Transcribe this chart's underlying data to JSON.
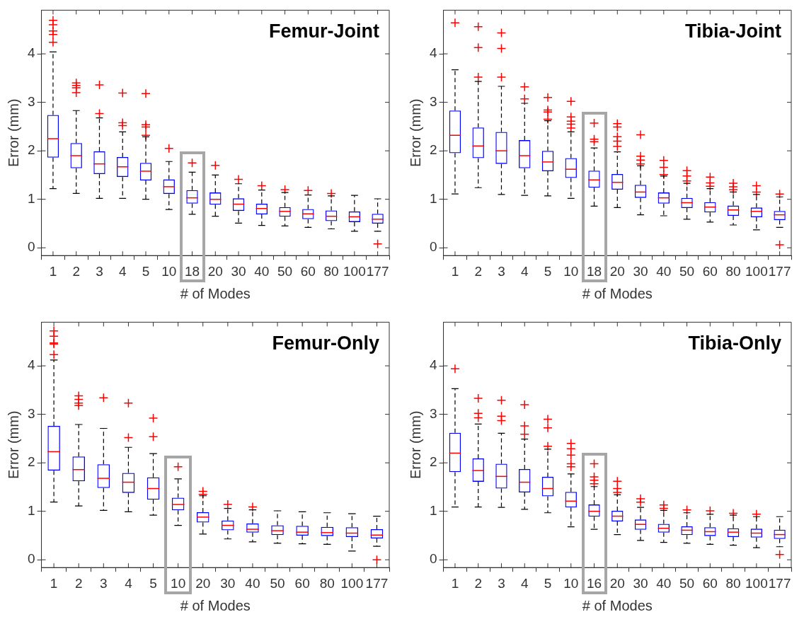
{
  "chart_data": [
    {
      "type": "box",
      "title": "Femur-Joint",
      "xlabel": "# of Modes",
      "ylabel": "Error (mm)",
      "categories": [
        "1",
        "2",
        "3",
        "4",
        "5",
        "10",
        "18",
        "20",
        "30",
        "40",
        "50",
        "60",
        "80",
        "100",
        "177"
      ],
      "ylim": [
        -0.16,
        4.9
      ],
      "yticks": [
        0,
        1,
        2,
        3,
        4
      ],
      "series": [
        {
          "color": "#0000ff",
          "boxes": [
            {
              "low": 1.22,
              "q1": 1.86,
              "median": 2.25,
              "q3": 2.74,
              "high": 4.04,
              "outliers": [
                4.24,
                4.4,
                4.47,
                4.6,
                4.69
              ]
            },
            {
              "low": 1.12,
              "q1": 1.64,
              "median": 1.9,
              "q3": 2.16,
              "high": 2.83,
              "outliers": [
                3.2,
                3.3,
                3.35,
                3.4
              ]
            },
            {
              "low": 1.02,
              "q1": 1.52,
              "median": 1.73,
              "q3": 1.99,
              "high": 2.68,
              "outliers": [
                2.77,
                3.36
              ]
            },
            {
              "low": 1.02,
              "q1": 1.46,
              "median": 1.67,
              "q3": 1.87,
              "high": 2.39,
              "outliers": [
                2.52,
                2.58,
                3.19
              ]
            },
            {
              "low": 1.0,
              "q1": 1.39,
              "median": 1.58,
              "q3": 1.75,
              "high": 2.29,
              "outliers": [
                2.32,
                2.49,
                2.54,
                3.18
              ]
            },
            {
              "low": 0.79,
              "q1": 1.11,
              "median": 1.26,
              "q3": 1.41,
              "high": 1.78,
              "outliers": [
                2.05
              ]
            },
            {
              "low": 0.69,
              "q1": 0.91,
              "median": 1.03,
              "q3": 1.19,
              "high": 1.56,
              "outliers": [
                1.75
              ]
            },
            {
              "low": 0.65,
              "q1": 0.89,
              "median": 1.0,
              "q3": 1.14,
              "high": 1.5,
              "outliers": [
                1.7
              ]
            },
            {
              "low": 0.51,
              "q1": 0.76,
              "median": 0.9,
              "q3": 1.02,
              "high": 1.32,
              "outliers": [
                1.41
              ]
            },
            {
              "low": 0.46,
              "q1": 0.69,
              "median": 0.81,
              "q3": 0.91,
              "high": 1.19,
              "outliers": [
                1.28
              ]
            },
            {
              "low": 0.45,
              "q1": 0.64,
              "median": 0.75,
              "q3": 0.84,
              "high": 1.14,
              "outliers": [
                1.2
              ]
            },
            {
              "low": 0.42,
              "q1": 0.59,
              "median": 0.7,
              "q3": 0.8,
              "high": 1.09,
              "outliers": [
                1.18
              ]
            },
            {
              "low": 0.39,
              "q1": 0.55,
              "median": 0.65,
              "q3": 0.77,
              "high": 1.07,
              "outliers": [
                1.12
              ]
            },
            {
              "low": 0.34,
              "q1": 0.53,
              "median": 0.64,
              "q3": 0.75,
              "high": 1.08
            },
            {
              "low": 0.34,
              "q1": 0.5,
              "median": 0.59,
              "q3": 0.7,
              "high": 1.01,
              "outliers": [
                0.08
              ]
            }
          ]
        }
      ]
    },
    {
      "type": "box",
      "title": "Tibia-Joint",
      "xlabel": "# of Modes",
      "ylabel": "Error (mm)",
      "categories": [
        "1",
        "2",
        "3",
        "4",
        "5",
        "10",
        "18",
        "20",
        "30",
        "40",
        "50",
        "60",
        "80",
        "100",
        "177"
      ],
      "ylim": [
        -0.16,
        4.9
      ],
      "yticks": [
        0,
        1,
        2,
        3,
        4
      ],
      "series": [
        {
          "color": "#0000ff",
          "boxes": [
            {
              "low": 1.11,
              "q1": 1.95,
              "median": 2.32,
              "q3": 2.83,
              "high": 3.67,
              "outliers": [
                4.64
              ]
            },
            {
              "low": 1.24,
              "q1": 1.85,
              "median": 2.1,
              "q3": 2.48,
              "high": 3.43,
              "outliers": [
                3.52,
                4.13,
                4.56
              ]
            },
            {
              "low": 1.1,
              "q1": 1.73,
              "median": 2.0,
              "q3": 2.39,
              "high": 3.33,
              "outliers": [
                3.52,
                4.11,
                4.43
              ]
            },
            {
              "low": 1.08,
              "q1": 1.64,
              "median": 1.9,
              "q3": 2.22,
              "high": 2.98,
              "outliers": [
                3.07,
                3.32
              ]
            },
            {
              "low": 1.07,
              "q1": 1.58,
              "median": 1.77,
              "q3": 2.0,
              "high": 2.62,
              "outliers": [
                2.65,
                2.8,
                2.84,
                3.1
              ]
            },
            {
              "low": 1.02,
              "q1": 1.44,
              "median": 1.62,
              "q3": 1.85,
              "high": 2.39,
              "outliers": [
                2.47,
                2.55,
                2.61,
                2.7,
                3.02
              ]
            },
            {
              "low": 0.86,
              "q1": 1.24,
              "median": 1.4,
              "q3": 1.59,
              "high": 2.06,
              "outliers": [
                2.19,
                2.24,
                2.57
              ]
            },
            {
              "low": 0.83,
              "q1": 1.2,
              "median": 1.35,
              "q3": 1.52,
              "high": 1.98,
              "outliers": [
                2.09,
                2.2,
                2.29,
                2.49,
                2.56
              ]
            },
            {
              "low": 0.68,
              "q1": 1.03,
              "median": 1.15,
              "q3": 1.3,
              "high": 1.69,
              "outliers": [
                1.73,
                1.81,
                1.89,
                2.33
              ]
            },
            {
              "low": 0.66,
              "q1": 0.91,
              "median": 1.03,
              "q3": 1.14,
              "high": 1.48,
              "outliers": [
                1.51,
                1.66,
                1.8
              ]
            },
            {
              "low": 0.59,
              "q1": 0.82,
              "median": 0.93,
              "q3": 1.03,
              "high": 1.33,
              "outliers": [
                1.38,
                1.48,
                1.59
              ]
            },
            {
              "low": 0.53,
              "q1": 0.73,
              "median": 0.84,
              "q3": 0.94,
              "high": 1.22,
              "outliers": [
                1.27,
                1.34,
                1.46
              ]
            },
            {
              "low": 0.47,
              "q1": 0.66,
              "median": 0.78,
              "q3": 0.87,
              "high": 1.15,
              "outliers": [
                1.2,
                1.26,
                1.33
              ]
            },
            {
              "low": 0.37,
              "q1": 0.63,
              "median": 0.75,
              "q3": 0.83,
              "high": 1.1,
              "outliers": [
                1.15,
                1.28
              ]
            },
            {
              "low": 0.42,
              "q1": 0.57,
              "median": 0.68,
              "q3": 0.76,
              "high": 1.05,
              "outliers": [
                1.11,
                0.06
              ]
            }
          ]
        }
      ]
    },
    {
      "type": "box",
      "title": "Femur-Only",
      "xlabel": "# of Modes",
      "ylabel": "Error (mm)",
      "categories": [
        "1",
        "2",
        "3",
        "4",
        "5",
        "10",
        "20",
        "30",
        "40",
        "50",
        "60",
        "80",
        "100",
        "177"
      ],
      "ylim": [
        -0.16,
        4.9
      ],
      "yticks": [
        0,
        1,
        2,
        3,
        4
      ],
      "series": [
        {
          "color": "#0000ff",
          "boxes": [
            {
              "low": 1.19,
              "q1": 1.84,
              "median": 2.23,
              "q3": 2.76,
              "high": 4.12,
              "outliers": [
                4.23,
                4.45,
                4.47,
                4.61,
                4.72
              ]
            },
            {
              "low": 1.11,
              "q1": 1.62,
              "median": 1.86,
              "q3": 2.13,
              "high": 2.79,
              "outliers": [
                3.18,
                3.23,
                3.31,
                3.38
              ]
            },
            {
              "low": 1.02,
              "q1": 1.48,
              "median": 1.68,
              "q3": 1.97,
              "high": 2.71,
              "outliers": [
                3.34
              ]
            },
            {
              "low": 0.99,
              "q1": 1.38,
              "median": 1.6,
              "q3": 1.79,
              "high": 2.32,
              "outliers": [
                2.52,
                3.23
              ]
            },
            {
              "low": 0.92,
              "q1": 1.24,
              "median": 1.47,
              "q3": 1.7,
              "high": 2.19,
              "outliers": [
                2.54,
                2.92
              ]
            },
            {
              "low": 0.71,
              "q1": 1.02,
              "median": 1.14,
              "q3": 1.28,
              "high": 1.67,
              "outliers": [
                1.92
              ]
            },
            {
              "low": 0.53,
              "q1": 0.77,
              "median": 0.88,
              "q3": 0.98,
              "high": 1.32,
              "outliers": [
                1.35,
                1.41
              ]
            },
            {
              "low": 0.43,
              "q1": 0.61,
              "median": 0.71,
              "q3": 0.81,
              "high": 1.06,
              "outliers": [
                1.14
              ]
            },
            {
              "low": 0.37,
              "q1": 0.56,
              "median": 0.63,
              "q3": 0.75,
              "high": 1.03,
              "outliers": [
                1.09
              ]
            },
            {
              "low": 0.34,
              "q1": 0.51,
              "median": 0.6,
              "q3": 0.71,
              "high": 1.01
            },
            {
              "low": 0.33,
              "q1": 0.5,
              "median": 0.57,
              "q3": 0.7,
              "high": 0.99
            },
            {
              "low": 0.32,
              "q1": 0.49,
              "median": 0.56,
              "q3": 0.68,
              "high": 0.97
            },
            {
              "low": 0.18,
              "q1": 0.47,
              "median": 0.55,
              "q3": 0.67,
              "high": 0.95
            },
            {
              "low": 0.28,
              "q1": 0.44,
              "median": 0.51,
              "q3": 0.63,
              "high": 0.9,
              "outliers": [
                0
              ]
            }
          ]
        }
      ]
    },
    {
      "type": "box",
      "title": "Tibia-Only",
      "xlabel": "# of Modes",
      "ylabel": "Error (mm)",
      "categories": [
        "1",
        "2",
        "3",
        "4",
        "5",
        "10",
        "16",
        "20",
        "30",
        "40",
        "50",
        "60",
        "80",
        "100",
        "177"
      ],
      "ylim": [
        -0.16,
        4.9
      ],
      "yticks": [
        0,
        1,
        2,
        3,
        4
      ],
      "series": [
        {
          "color": "#0000ff",
          "boxes": [
            {
              "low": 1.09,
              "q1": 1.81,
              "median": 2.2,
              "q3": 2.62,
              "high": 3.53,
              "outliers": [
                3.94
              ]
            },
            {
              "low": 1.09,
              "q1": 1.61,
              "median": 1.84,
              "q3": 2.09,
              "high": 2.8,
              "outliers": [
                2.93,
                3.02,
                3.33
              ]
            },
            {
              "low": 1.08,
              "q1": 1.47,
              "median": 1.72,
              "q3": 1.98,
              "high": 2.61,
              "outliers": [
                2.87,
                2.96,
                3.29
              ]
            },
            {
              "low": 1.04,
              "q1": 1.39,
              "median": 1.6,
              "q3": 1.87,
              "high": 2.49,
              "outliers": [
                2.59,
                2.76,
                3.2
              ]
            },
            {
              "low": 0.97,
              "q1": 1.31,
              "median": 1.47,
              "q3": 1.71,
              "high": 2.28,
              "outliers": [
                2.34,
                2.72,
                2.9
              ]
            },
            {
              "low": 0.68,
              "q1": 1.08,
              "median": 1.21,
              "q3": 1.4,
              "high": 1.77,
              "outliers": [
                1.92,
                1.98,
                2.16,
                2.29,
                2.4
              ]
            },
            {
              "low": 0.63,
              "q1": 0.89,
              "median": 1.0,
              "q3": 1.14,
              "high": 1.51,
              "outliers": [
                1.57,
                1.64,
                1.71,
                1.98
              ]
            },
            {
              "low": 0.52,
              "q1": 0.79,
              "median": 0.9,
              "q3": 1.01,
              "high": 1.34,
              "outliers": [
                1.39,
                1.47,
                1.62
              ]
            },
            {
              "low": 0.4,
              "q1": 0.62,
              "median": 0.73,
              "q3": 0.83,
              "high": 1.08,
              "outliers": [
                1.19,
                1.26
              ]
            },
            {
              "low": 0.36,
              "q1": 0.56,
              "median": 0.65,
              "q3": 0.74,
              "high": 1.02,
              "outliers": [
                1.06,
                1.13
              ]
            },
            {
              "low": 0.34,
              "q1": 0.51,
              "median": 0.61,
              "q3": 0.69,
              "high": 0.97,
              "outliers": [
                1.03
              ]
            },
            {
              "low": 0.32,
              "q1": 0.49,
              "median": 0.58,
              "q3": 0.67,
              "high": 0.94,
              "outliers": [
                1.01
              ]
            },
            {
              "low": 0.3,
              "q1": 0.47,
              "median": 0.57,
              "q3": 0.65,
              "high": 0.92,
              "outliers": [
                0.96
              ]
            },
            {
              "low": 0.25,
              "q1": 0.46,
              "median": 0.55,
              "q3": 0.64,
              "high": 0.89,
              "outliers": [
                0.94
              ]
            },
            {
              "low": 0.27,
              "q1": 0.43,
              "median": 0.52,
              "q3": 0.62,
              "high": 0.89,
              "outliers": [
                0.11
              ]
            }
          ]
        }
      ]
    }
  ]
}
